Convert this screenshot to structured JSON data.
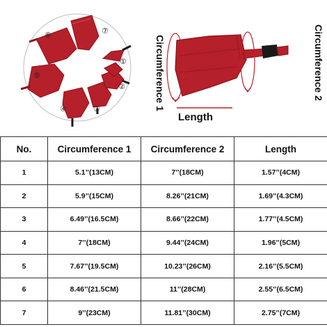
{
  "figure": {
    "ring_numbers": [
      "①",
      "②",
      "③",
      "④",
      "⑤",
      "⑥",
      "⑦"
    ],
    "label_circumference1": "Circumference 1",
    "label_circumference2": "Circumference 2",
    "label_length": "Length",
    "colors": {
      "muzzle": "#b5202a",
      "muzzle_dark": "#8c141c",
      "arrow": "#c0202a",
      "buckle": "#1a1a1a"
    }
  },
  "table": {
    "headers": [
      "No.",
      "Circumference 1",
      "Circumference 2",
      "Length"
    ],
    "rows": [
      [
        "1",
        "5.1’’(13CM)",
        "7’’(18CM)",
        "1.57’’(4CM)"
      ],
      [
        "2",
        "5.9’’(15CM)",
        "8.26’’(21CM)",
        "1.69’’(4.3CM)"
      ],
      [
        "3",
        "6.49’’(16.5CM)",
        "8.66’’(22CM)",
        "1.77’’(4.5CM)"
      ],
      [
        "4",
        "7’’(18CM)",
        "9.44’’(24CM)",
        "1.96’’(5CM)"
      ],
      [
        "5",
        "7.67’’(19.5CM)",
        "10.23’’(26CM)",
        "2.16’’(5.5CM)"
      ],
      [
        "6",
        "8.46’’(21.5CM)",
        "11’’(28CM)",
        "2.55’’(6.5CM)"
      ],
      [
        "7",
        "9’’(23CM)",
        "11.81’’(30CM)",
        "2.75’’(7CM)"
      ]
    ]
  }
}
